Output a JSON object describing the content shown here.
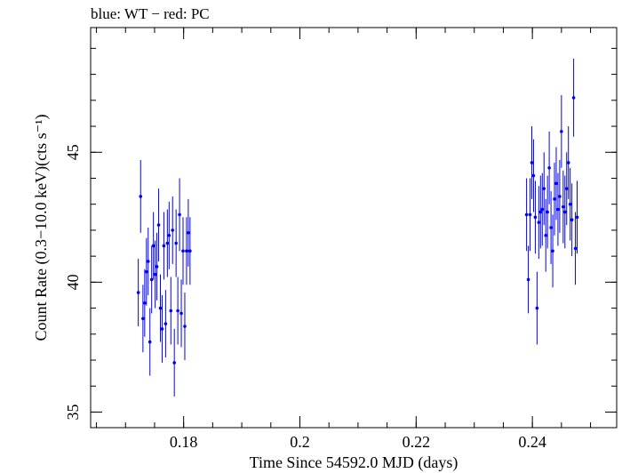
{
  "chart_data": {
    "type": "scatter",
    "title": "blue: WT − red: PC",
    "xlabel": "Time Since 54592.0 MJD (days)",
    "ylabel": "Count Rate (0.3−10.0 keV)(cts s⁻¹)",
    "xlim": [
      0.164,
      0.2545
    ],
    "ylim": [
      34.4,
      49.8
    ],
    "xticks_major": [
      0.18,
      0.2,
      0.22,
      0.24
    ],
    "xtick_labels": [
      "0.18",
      "0.2",
      "0.22",
      "0.24"
    ],
    "yticks_major": [
      35,
      40,
      45
    ],
    "ytick_labels": [
      "35",
      "40",
      "45"
    ],
    "xticks_minor_step": 0.005,
    "yticks_minor_step": 1,
    "grid": false,
    "series": [
      {
        "name": "WT",
        "color": "#0000ff",
        "x": [
          0.1722,
          0.1726,
          0.173,
          0.1733,
          0.1736,
          0.1739,
          0.1742,
          0.1745,
          0.1748,
          0.1751,
          0.1754,
          0.1757,
          0.176,
          0.1763,
          0.1766,
          0.1769,
          0.1772,
          0.1775,
          0.1778,
          0.1781,
          0.1784,
          0.1787,
          0.179,
          0.1793,
          0.1796,
          0.1799,
          0.1802,
          0.1805,
          0.1808,
          0.1811,
          0.239,
          0.2393,
          0.2396,
          0.2399,
          0.2402,
          0.2405,
          0.2408,
          0.2411,
          0.2414,
          0.2417,
          0.242,
          0.2423,
          0.2426,
          0.2429,
          0.2432,
          0.2435,
          0.2438,
          0.2441,
          0.2444,
          0.2447,
          0.245,
          0.2453,
          0.2456,
          0.2459,
          0.2462,
          0.2465,
          0.2468,
          0.2471,
          0.2474,
          0.2477
        ],
        "y": [
          39.6,
          43.3,
          38.6,
          39.2,
          40.4,
          40.8,
          37.7,
          40.1,
          41.4,
          40.3,
          40.6,
          42.2,
          39.0,
          38.2,
          41.4,
          38.4,
          41.5,
          41.8,
          38.9,
          42.0,
          36.9,
          41.5,
          38.9,
          42.6,
          38.8,
          41.2,
          38.3,
          41.2,
          41.9,
          41.2,
          42.6,
          40.1,
          42.6,
          44.6,
          44.1,
          42.5,
          39.0,
          42.3,
          42.7,
          42.8,
          43.6,
          41.8,
          42.7,
          44.4,
          42.1,
          41.2,
          43.2,
          43.8,
          42.8,
          43.3,
          45.8,
          42.9,
          42.7,
          43.6,
          44.6,
          43.0,
          42.4,
          47.1,
          41.3,
          42.5
        ],
        "err": [
          1.3,
          1.4,
          1.3,
          1.3,
          1.3,
          1.3,
          1.3,
          1.3,
          1.3,
          1.3,
          1.3,
          1.4,
          1.3,
          1.3,
          1.3,
          1.3,
          1.3,
          1.3,
          1.3,
          1.3,
          1.3,
          1.3,
          1.3,
          1.4,
          1.3,
          1.3,
          1.3,
          1.3,
          1.3,
          1.3,
          1.4,
          1.3,
          1.4,
          1.4,
          1.4,
          1.4,
          1.4,
          1.4,
          1.4,
          1.4,
          1.4,
          1.4,
          1.4,
          1.4,
          1.4,
          1.4,
          1.4,
          1.4,
          1.4,
          1.4,
          1.4,
          1.4,
          1.4,
          1.4,
          1.4,
          1.4,
          1.4,
          1.5,
          1.4,
          1.4
        ],
        "xerr": 0.00015
      }
    ]
  }
}
